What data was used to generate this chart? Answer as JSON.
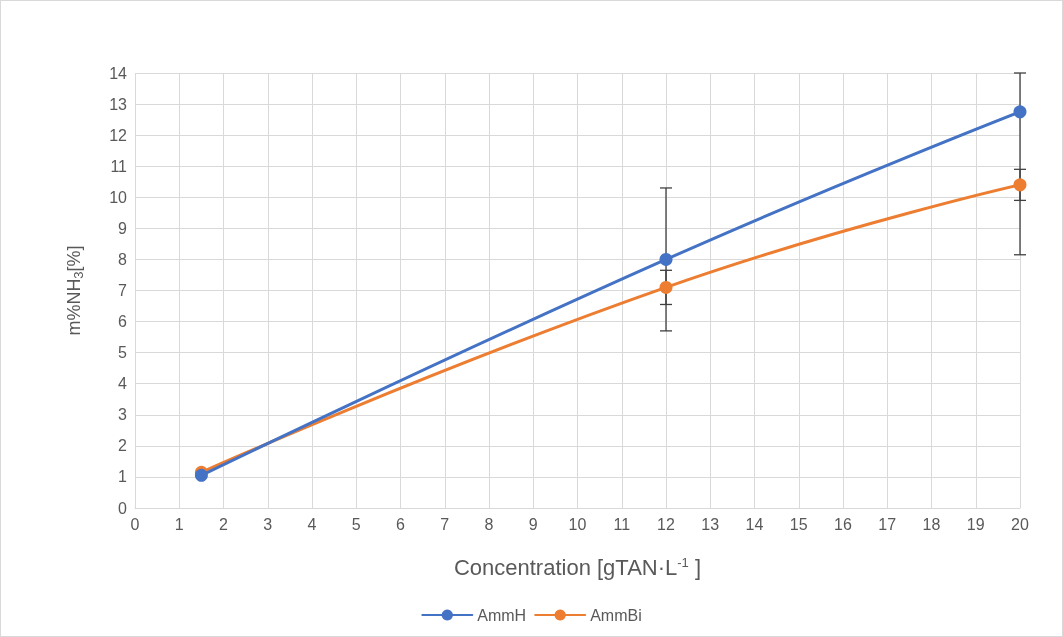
{
  "chart_data": {
    "type": "line",
    "xlabel": "Concentration [gTAN·L$^{-1}$ ]",
    "ylabel": "m%NH$_{3}$[%]",
    "x": [
      1.5,
      12,
      20
    ],
    "series": [
      {
        "name": "AmmH",
        "color": "#4472c4",
        "values": [
          1.05,
          8.0,
          12.75
        ],
        "errors": [
          null,
          [
            5.7,
            10.3
          ],
          [
            8.15,
            14
          ]
        ]
      },
      {
        "name": "AmmBi",
        "color": "#ed7d31",
        "values": [
          1.15,
          7.1,
          10.4
        ],
        "errors": [
          null,
          [
            6.55,
            7.65
          ],
          [
            9.9,
            10.9
          ]
        ]
      }
    ],
    "xlim": [
      0,
      20
    ],
    "xticks": [
      0,
      1,
      2,
      3,
      4,
      5,
      6,
      7,
      8,
      9,
      10,
      11,
      12,
      13,
      14,
      15,
      16,
      17,
      18,
      19,
      20
    ],
    "ylim": [
      0,
      14
    ],
    "yticks": [
      0,
      1,
      2,
      3,
      4,
      5,
      6,
      7,
      8,
      9,
      10,
      11,
      12,
      13,
      14
    ],
    "grid": true,
    "legend": "bottom",
    "marker": "circle",
    "line_style": "solid"
  }
}
